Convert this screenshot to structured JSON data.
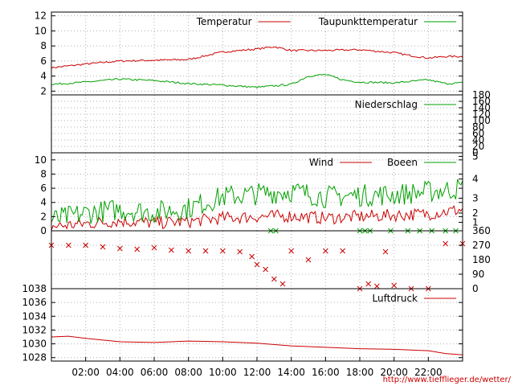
{
  "chart_data": [
    {
      "type": "line",
      "panel": "temperature",
      "ylim": [
        1.5,
        12.5
      ],
      "yticks": [
        2,
        4,
        6,
        8,
        10,
        12
      ],
      "grid": true,
      "legend_position": "top-right",
      "series": [
        {
          "name": "Temperatur",
          "color": "#cc0000",
          "x": [
            0,
            2,
            4,
            6,
            8,
            10,
            12,
            13,
            14,
            16,
            18,
            20,
            21,
            22,
            23,
            24
          ],
          "values": [
            5.1,
            5.6,
            6.0,
            6.1,
            6.2,
            7.2,
            7.6,
            7.9,
            7.4,
            7.4,
            7.5,
            7.1,
            6.7,
            6.4,
            6.6,
            6.6
          ]
        },
        {
          "name": "Taupunkttemperatur",
          "color": "#00a000",
          "x": [
            0,
            2,
            4,
            6,
            8,
            10,
            12,
            14,
            15,
            16,
            17,
            18,
            20,
            22,
            23,
            24
          ],
          "values": [
            2.9,
            3.2,
            3.6,
            3.4,
            3.0,
            2.8,
            2.5,
            2.9,
            4.0,
            4.2,
            3.5,
            3.2,
            3.1,
            3.5,
            3.0,
            3.1
          ]
        }
      ]
    },
    {
      "type": "line",
      "panel": "precipitation",
      "ylim": [
        0,
        180
      ],
      "yticks_right": [
        0,
        20,
        40,
        60,
        80,
        100,
        120,
        140,
        160,
        180
      ],
      "grid": true,
      "legend_position": "top-right",
      "series": [
        {
          "name": "Niederschlag",
          "color": "#00a000",
          "x": [
            0,
            24
          ],
          "values": [
            0,
            0
          ]
        }
      ]
    },
    {
      "type": "line",
      "panel": "wind",
      "ylim": [
        0,
        11
      ],
      "yticks": [
        0,
        2,
        4,
        6,
        8,
        10
      ],
      "yticks_right": [
        1,
        2,
        3,
        4,
        5
      ],
      "grid": true,
      "legend_position": "top-right",
      "series": [
        {
          "name": "Wind",
          "color": "#cc0000",
          "x": [
            0,
            2,
            4,
            6,
            8,
            10,
            12,
            14,
            16,
            18,
            20,
            22,
            24
          ],
          "values": [
            0.6,
            1.0,
            1.4,
            1.1,
            1.3,
            1.8,
            2.0,
            2.1,
            1.8,
            2.0,
            2.2,
            2.4,
            3.0
          ]
        },
        {
          "name": "Boeen",
          "color": "#00a000",
          "x": [
            0,
            2,
            4,
            6,
            8,
            10,
            12,
            14,
            16,
            18,
            20,
            22,
            24
          ],
          "values": [
            1.5,
            2.5,
            3.0,
            2.6,
            3.2,
            4.8,
            5.2,
            5.6,
            4.8,
            5.0,
            5.1,
            5.5,
            6.0
          ]
        }
      ]
    },
    {
      "type": "scatter",
      "panel": "wind-direction",
      "ylim": [
        0,
        360
      ],
      "yticks_right": [
        0,
        90,
        180,
        270,
        360
      ],
      "grid": true,
      "series": [
        {
          "name": "",
          "color": "#cc0000",
          "x": [
            0,
            1,
            2,
            3,
            4,
            5,
            6,
            7,
            8,
            9,
            10,
            11,
            11.7,
            12,
            12.5,
            13,
            13.5,
            14,
            15,
            16,
            17,
            18,
            18.5,
            19,
            19.5,
            20,
            21,
            22,
            23,
            24
          ],
          "values": [
            270,
            270,
            270,
            260,
            250,
            245,
            255,
            240,
            235,
            235,
            235,
            230,
            200,
            150,
            120,
            60,
            30,
            235,
            180,
            235,
            235,
            0,
            30,
            15,
            230,
            20,
            0,
            0,
            280,
            280
          ]
        },
        {
          "name": "",
          "color": "#00a000",
          "x": [
            12.8,
            13.1,
            18.0,
            18.3,
            18.6,
            19.8,
            20.8,
            21.5,
            22.2,
            23.0,
            23.6
          ],
          "values": [
            360,
            360,
            360,
            360,
            360,
            360,
            360,
            360,
            360,
            360,
            360
          ]
        }
      ]
    },
    {
      "type": "line",
      "panel": "pressure",
      "ylim": [
        1027.5,
        1038
      ],
      "yticks": [
        1028,
        1030,
        1032,
        1034,
        1036,
        1038
      ],
      "grid": true,
      "legend_position": "top-right",
      "series": [
        {
          "name": "Luftdruck",
          "color": "#cc0000",
          "x": [
            0,
            1,
            2,
            4,
            6,
            8,
            10,
            12,
            14,
            16,
            18,
            20,
            22,
            23,
            24
          ],
          "values": [
            1031.0,
            1031.1,
            1030.8,
            1030.3,
            1030.2,
            1030.4,
            1030.3,
            1030.1,
            1029.7,
            1029.5,
            1029.3,
            1029.2,
            1029.0,
            1028.6,
            1028.4
          ]
        }
      ]
    }
  ],
  "x_axis": {
    "range": [
      0,
      24
    ],
    "tick_values": [
      2,
      4,
      6,
      8,
      10,
      12,
      14,
      16,
      18,
      20,
      22
    ],
    "tick_labels": [
      "02:00",
      "04:00",
      "06:00",
      "08:00",
      "10:00",
      "12:00",
      "14:00",
      "16:00",
      "18:00",
      "20:00",
      "22:00"
    ]
  },
  "source_credit": "http://www.tiefflieger.de/wetter/"
}
